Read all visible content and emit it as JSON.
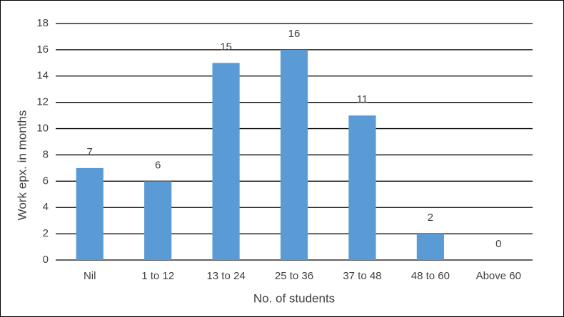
{
  "chart_data": {
    "type": "bar",
    "categories": [
      "Nil",
      "1 to 12",
      "13 to 24",
      "25 to 36",
      "37 to 48",
      "48 to 60",
      "Above 60"
    ],
    "values": [
      7,
      6,
      15,
      16,
      11,
      2,
      0
    ],
    "color": "#5b9bd5",
    "ylim": [
      0,
      18
    ],
    "yticks": [
      0,
      2,
      4,
      6,
      8,
      10,
      12,
      14,
      16,
      18
    ],
    "grid": true,
    "x_label": "No. of students",
    "y_label": "Work epx. in months"
  }
}
